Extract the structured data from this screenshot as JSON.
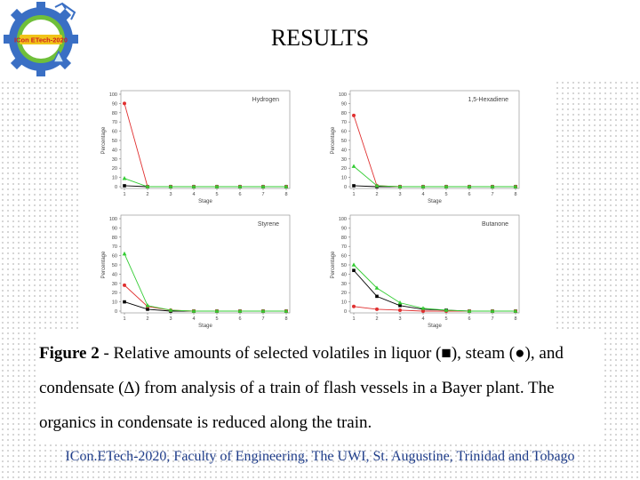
{
  "slide": {
    "title": "RESULTS",
    "logo_text": "ICon ETech-2020",
    "caption_bold": "Figure 2",
    "caption_text": " - Relative amounts of selected volatiles in liquor (■), steam (●), and condensate (∆) from analysis of a train of flash vessels in a Bayer plant. The organics in condensate is reduced along the train.",
    "footer": "ICon.ETech-2020, Faculty of Engineering, The UWI, St. Augustine, Trinidad and Tobago"
  },
  "colors": {
    "liquor": "#000000",
    "steam": "#e03030",
    "condensate": "#33cc33",
    "logo_ring": "#3a6fc4",
    "logo_inner": "#6fbf3a",
    "footer_text": "#1f3d8a"
  },
  "chart_data": [
    {
      "type": "line",
      "title": "Hydrogen",
      "xlabel": "Stage",
      "ylabel": "Percentage",
      "x": [
        1,
        2,
        3,
        4,
        5,
        6,
        7,
        8
      ],
      "ylim": [
        0,
        100
      ],
      "yticks": [
        0,
        10,
        20,
        30,
        40,
        50,
        60,
        70,
        80,
        90,
        100
      ],
      "series": [
        {
          "name": "liquor",
          "marker": "square",
          "values": [
            1,
            0,
            0,
            0,
            0,
            0,
            0,
            0
          ]
        },
        {
          "name": "steam",
          "marker": "circle",
          "values": [
            90,
            0,
            0,
            0,
            0,
            0,
            0,
            0
          ]
        },
        {
          "name": "condensate",
          "marker": "triangle",
          "values": [
            9,
            0,
            0,
            0,
            0,
            0,
            0,
            0
          ]
        }
      ]
    },
    {
      "type": "line",
      "title": "1,5-Hexadiene",
      "xlabel": "Stage",
      "ylabel": "Percentage",
      "x": [
        1,
        2,
        3,
        4,
        5,
        6,
        7,
        8
      ],
      "ylim": [
        0,
        100
      ],
      "yticks": [
        0,
        10,
        20,
        30,
        40,
        50,
        60,
        70,
        80,
        90,
        100
      ],
      "series": [
        {
          "name": "liquor",
          "marker": "square",
          "values": [
            1,
            0,
            0,
            0,
            0,
            0,
            0,
            0
          ]
        },
        {
          "name": "steam",
          "marker": "circle",
          "values": [
            77,
            1,
            0,
            0,
            0,
            0,
            0,
            0
          ]
        },
        {
          "name": "condensate",
          "marker": "triangle",
          "values": [
            22,
            1,
            0,
            0,
            0,
            0,
            0,
            0
          ]
        }
      ]
    },
    {
      "type": "line",
      "title": "Styrene",
      "xlabel": "Stage",
      "ylabel": "Percentage",
      "x": [
        1,
        2,
        3,
        4,
        5,
        6,
        7,
        8
      ],
      "ylim": [
        0,
        100
      ],
      "yticks": [
        0,
        10,
        20,
        30,
        40,
        50,
        60,
        70,
        80,
        90,
        100
      ],
      "series": [
        {
          "name": "liquor",
          "marker": "square",
          "values": [
            10,
            2,
            0,
            0,
            0,
            0,
            0,
            0
          ]
        },
        {
          "name": "steam",
          "marker": "circle",
          "values": [
            28,
            5,
            1,
            0,
            0,
            0,
            0,
            0
          ]
        },
        {
          "name": "condensate",
          "marker": "triangle",
          "values": [
            62,
            6,
            1,
            0,
            0,
            0,
            0,
            0
          ]
        }
      ]
    },
    {
      "type": "line",
      "title": "Butanone",
      "xlabel": "Stage",
      "ylabel": "Percentage",
      "x": [
        1,
        2,
        3,
        4,
        5,
        6,
        7,
        8
      ],
      "ylim": [
        0,
        100
      ],
      "yticks": [
        0,
        10,
        20,
        30,
        40,
        50,
        60,
        70,
        80,
        90,
        100
      ],
      "series": [
        {
          "name": "liquor",
          "marker": "square",
          "values": [
            44,
            16,
            6,
            2,
            1,
            0,
            0,
            0
          ]
        },
        {
          "name": "steam",
          "marker": "circle",
          "values": [
            5,
            2,
            1,
            0,
            0,
            0,
            0,
            0
          ]
        },
        {
          "name": "condensate",
          "marker": "triangle",
          "values": [
            50,
            25,
            9,
            3,
            1,
            0,
            0,
            0
          ]
        }
      ]
    }
  ]
}
